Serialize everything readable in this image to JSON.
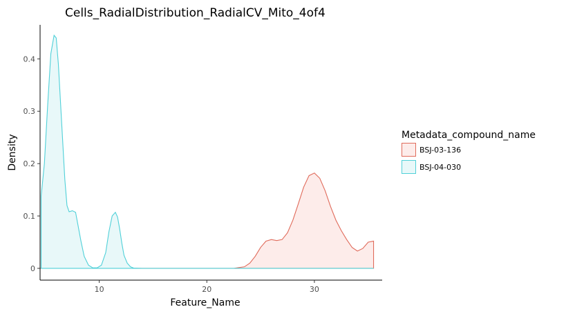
{
  "chart_data": {
    "type": "area",
    "title": "Cells_RadialDistribution_RadialCV_Mito_4of4",
    "xlabel": "Feature_Name",
    "ylabel": "Density",
    "xlim": [
      4.5,
      36.3
    ],
    "ylim": [
      -0.0225,
      0.465
    ],
    "x_ticks": [
      10,
      20,
      30
    ],
    "y_ticks": [
      0,
      0.1,
      0.2,
      0.3,
      0.4
    ],
    "x_tick_labels": [
      "10",
      "20",
      "30"
    ],
    "y_tick_labels": [
      "0",
      "0.1",
      "0.2",
      "0.3",
      "0.4"
    ],
    "grid": false,
    "legend": {
      "title": "Metadata_compound_name",
      "position": "right"
    },
    "series": [
      {
        "name": "BSJ-03-136",
        "line_color": "#e06a5a",
        "fill_color": "#fdecea",
        "x": [
          4.5,
          22.5,
          23.5,
          24.0,
          24.5,
          25.0,
          25.5,
          26.0,
          26.5,
          27.0,
          27.5,
          28.0,
          28.5,
          29.0,
          29.5,
          30.0,
          30.5,
          31.0,
          31.5,
          32.0,
          32.5,
          33.0,
          33.5,
          34.0,
          34.5,
          35.0,
          35.5
        ],
        "y": [
          0,
          0,
          0.003,
          0.01,
          0.023,
          0.04,
          0.052,
          0.055,
          0.053,
          0.055,
          0.068,
          0.092,
          0.123,
          0.155,
          0.177,
          0.182,
          0.172,
          0.148,
          0.118,
          0.092,
          0.072,
          0.055,
          0.04,
          0.033,
          0.038,
          0.05,
          0.052
        ]
      },
      {
        "name": "BSJ-04-030",
        "line_color": "#4fd0d8",
        "fill_color": "#e8f8f9",
        "x": [
          4.6,
          4.9,
          5.2,
          5.5,
          5.8,
          6.0,
          6.2,
          6.5,
          6.8,
          7.0,
          7.2,
          7.5,
          7.8,
          8.0,
          8.3,
          8.6,
          9.0,
          9.4,
          9.8,
          10.2,
          10.6,
          10.9,
          11.2,
          11.5,
          11.7,
          11.9,
          12.1,
          12.3,
          12.6,
          12.9,
          13.2,
          14.0,
          35.5
        ],
        "y": [
          0.138,
          0.2,
          0.31,
          0.41,
          0.445,
          0.44,
          0.39,
          0.28,
          0.17,
          0.12,
          0.108,
          0.11,
          0.107,
          0.085,
          0.052,
          0.023,
          0.006,
          0.001,
          0.001,
          0.006,
          0.03,
          0.07,
          0.1,
          0.107,
          0.098,
          0.075,
          0.048,
          0.025,
          0.01,
          0.003,
          0.0005,
          0,
          0
        ]
      }
    ]
  }
}
